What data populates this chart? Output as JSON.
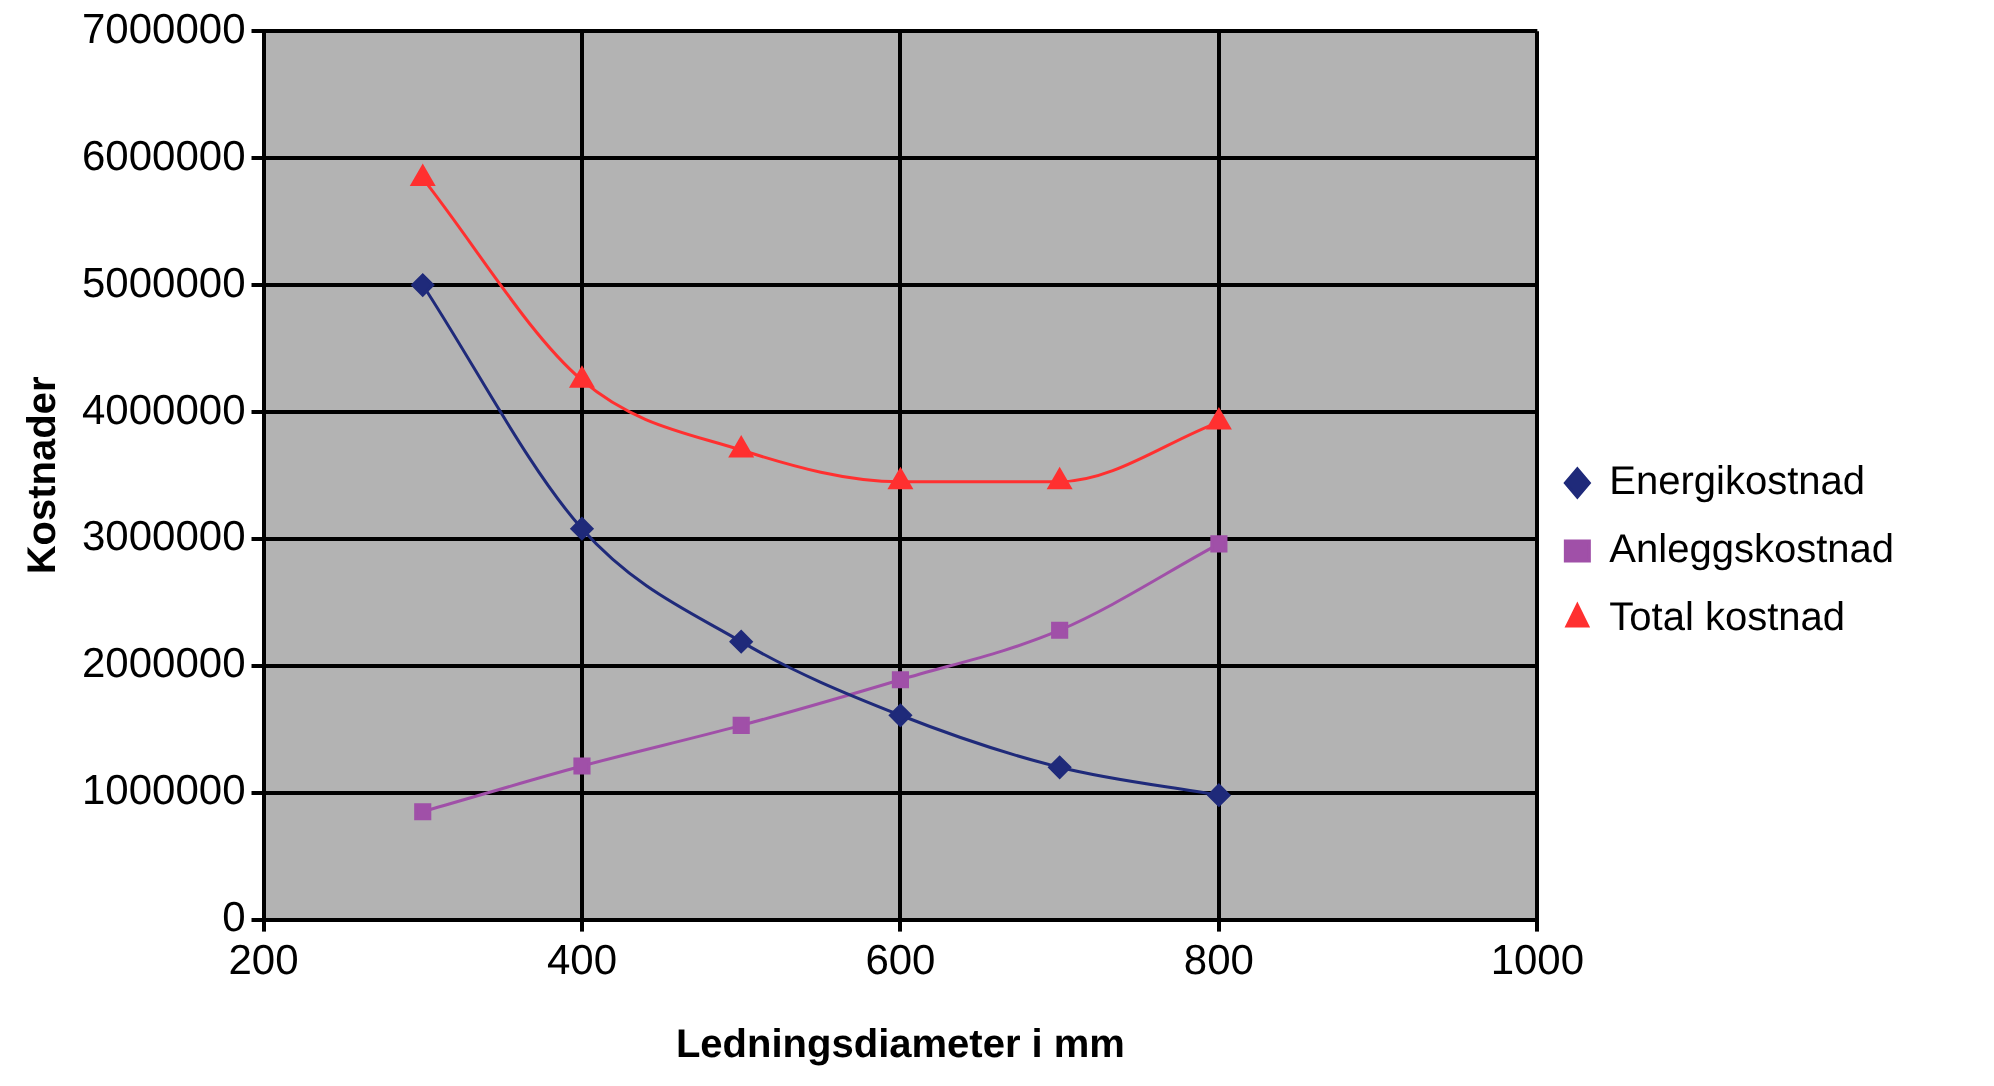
{
  "chart_data": {
    "type": "line",
    "xlabel": "Ledningsdiameter i mm",
    "ylabel": "Kostnader",
    "x": [
      300,
      400,
      500,
      600,
      700,
      800
    ],
    "series": [
      {
        "name": "Energikostnad",
        "color": "#1f2a7a",
        "marker": "diamond",
        "values": [
          5000000,
          3080000,
          2190000,
          1610000,
          1200000,
          980000
        ]
      },
      {
        "name": "Anleggskostnad",
        "color": "#a050a8",
        "marker": "square",
        "values": [
          850000,
          1210000,
          1530000,
          1890000,
          2280000,
          2960000
        ]
      },
      {
        "name": "Total kostnad",
        "color": "#ff3030",
        "marker": "triangle",
        "values": [
          5840000,
          4250000,
          3700000,
          3450000,
          3450000,
          3920000
        ]
      }
    ],
    "xlim": [
      200,
      1000
    ],
    "xticks": [
      200,
      400,
      600,
      800,
      1000
    ],
    "ylim": [
      0,
      7000000
    ],
    "yticks": [
      0,
      1000000,
      2000000,
      3000000,
      4000000,
      5000000,
      6000000,
      7000000
    ],
    "grid": true,
    "legend": "right"
  }
}
